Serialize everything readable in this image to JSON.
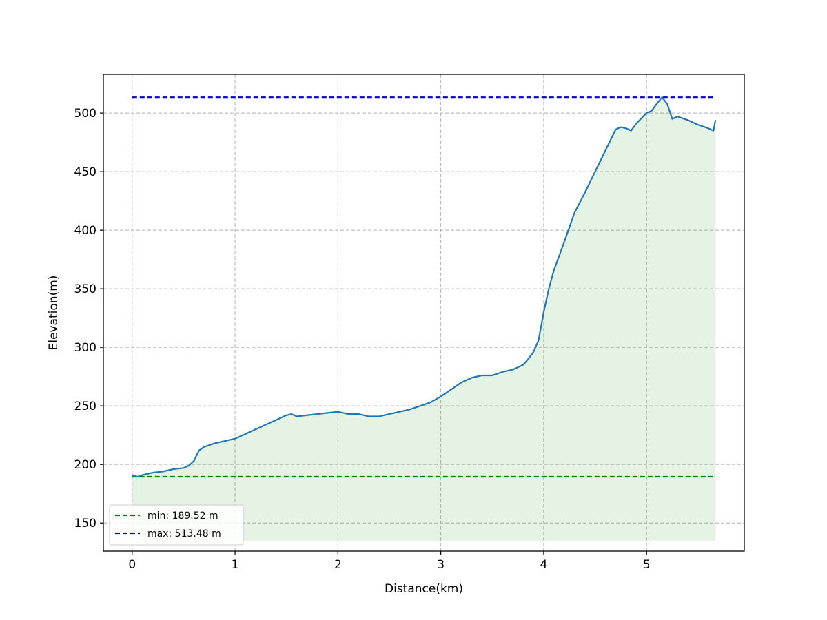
{
  "chart_data": {
    "type": "area",
    "title": "",
    "xlabel": "Distance(km)",
    "ylabel": "Elevation(m)",
    "xlim": [
      -0.28,
      5.95
    ],
    "ylim": [
      126,
      533
    ],
    "x_ticks": [
      0,
      1,
      2,
      3,
      4,
      5
    ],
    "y_ticks": [
      150,
      200,
      250,
      300,
      350,
      400,
      450,
      500
    ],
    "grid": true,
    "legend_position": "lower-left",
    "fill_baseline": 135,
    "colors": {
      "profile": "#1f77b4",
      "fill": "#2ca02c",
      "min_line": "#008000",
      "max_line": "#0000cc",
      "grid": "#b0b0b0"
    },
    "series": [
      {
        "x": [
          0,
          0.05,
          0.1,
          0.2,
          0.3,
          0.4,
          0.5,
          0.55,
          0.6,
          0.65,
          0.7,
          0.8,
          0.9,
          1.0,
          1.1,
          1.2,
          1.3,
          1.4,
          1.5,
          1.55,
          1.6,
          1.7,
          1.8,
          1.9,
          2.0,
          2.1,
          2.2,
          2.3,
          2.4,
          2.5,
          2.6,
          2.7,
          2.8,
          2.9,
          3.0,
          3.1,
          3.2,
          3.3,
          3.4,
          3.5,
          3.6,
          3.7,
          3.8,
          3.85,
          3.9,
          3.95,
          4.0,
          4.05,
          4.1,
          4.2,
          4.3,
          4.4,
          4.5,
          4.6,
          4.7,
          4.75,
          4.8,
          4.85,
          4.9,
          5.0,
          5.05,
          5.1,
          5.15,
          5.2,
          5.25,
          5.3,
          5.4,
          5.5,
          5.6,
          5.65,
          5.67
        ],
        "y": [
          191,
          189.5,
          191,
          193,
          194,
          196,
          197,
          199,
          203,
          212,
          215,
          218,
          220,
          222,
          226,
          230,
          234,
          238,
          242,
          243,
          241,
          242,
          243,
          244,
          245,
          243,
          243,
          241,
          241,
          243,
          245,
          247,
          250,
          253,
          258,
          264,
          270,
          274,
          276,
          276,
          279,
          281,
          285,
          290,
          296,
          306,
          330,
          350,
          366,
          390,
          415,
          432,
          450,
          468,
          486,
          488,
          487,
          485,
          491,
          500,
          502,
          508,
          513.48,
          508,
          495,
          497,
          494,
          490,
          487,
          485,
          494
        ]
      }
    ],
    "reference_lines": [
      {
        "name": "min",
        "value": 189.52,
        "label": "min: 189.52 m",
        "style": "dashed"
      },
      {
        "name": "max",
        "value": 513.48,
        "label": "max: 513.48 m",
        "style": "dashed"
      }
    ]
  }
}
